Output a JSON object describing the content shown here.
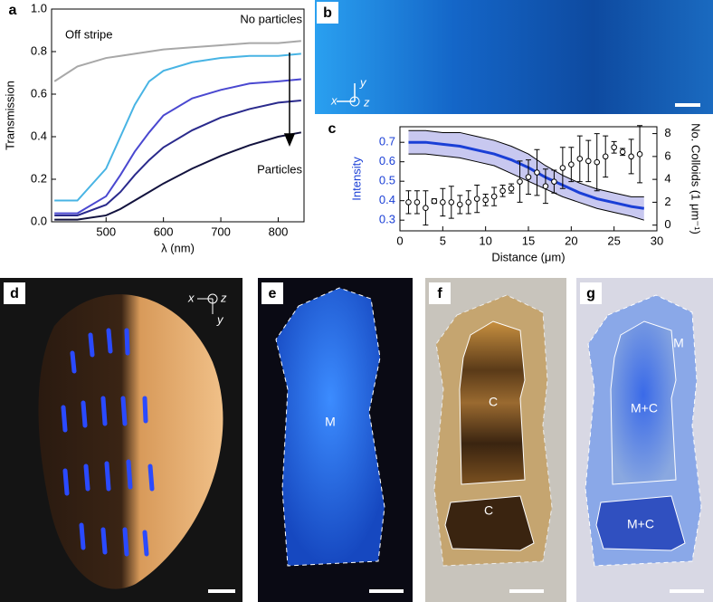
{
  "chart_data": [
    {
      "type": "line",
      "panel_label": "a",
      "xlabel": "λ (nm)",
      "ylabel": "Transmission",
      "x": [
        410,
        450,
        500,
        525,
        550,
        575,
        600,
        650,
        700,
        750,
        800,
        840
      ],
      "series": [
        {
          "name": "Off stripe",
          "color": "#a8a8a8",
          "values": [
            0.66,
            0.73,
            0.77,
            0.78,
            0.79,
            0.8,
            0.81,
            0.82,
            0.83,
            0.84,
            0.84,
            0.85
          ]
        },
        {
          "color": "#48b4e4",
          "values": [
            0.1,
            0.1,
            0.25,
            0.4,
            0.55,
            0.66,
            0.71,
            0.75,
            0.77,
            0.78,
            0.78,
            0.79
          ]
        },
        {
          "color": "#4a48d0",
          "values": [
            0.04,
            0.04,
            0.12,
            0.22,
            0.33,
            0.42,
            0.5,
            0.58,
            0.62,
            0.65,
            0.66,
            0.67
          ]
        },
        {
          "color": "#2a2a8c",
          "values": [
            0.03,
            0.03,
            0.08,
            0.14,
            0.22,
            0.29,
            0.35,
            0.43,
            0.49,
            0.53,
            0.56,
            0.57
          ]
        },
        {
          "color": "#12123e",
          "values": [
            0.01,
            0.01,
            0.03,
            0.06,
            0.1,
            0.14,
            0.18,
            0.25,
            0.31,
            0.36,
            0.4,
            0.42
          ]
        }
      ],
      "annotations": [
        "No particles",
        "Particles"
      ],
      "xlim": [
        405,
        845
      ],
      "ylim": [
        0,
        1
      ],
      "xticks": [
        500,
        600,
        700,
        800
      ],
      "yticks": [
        {
          "value": 0,
          "label": "0.0"
        },
        {
          "value": 0.2,
          "label": "0.2"
        },
        {
          "value": 0.4,
          "label": "0.4"
        },
        {
          "value": 0.6,
          "label": "0.6"
        },
        {
          "value": 0.8,
          "label": "0.8"
        },
        {
          "value": 1,
          "label": "1.0"
        }
      ]
    },
    {
      "type": "line",
      "panel_label": "c",
      "xlabel": "Distance (μm)",
      "ylabel": "Intensity",
      "y2label": "No. Colloids (1 μm⁻¹)",
      "series": [
        {
          "color": "#1a3fd6",
          "band_color": "#c8c8f0",
          "x": [
            1,
            3,
            5,
            7,
            9,
            11,
            13,
            15,
            17,
            19,
            21,
            23,
            25,
            27,
            28.5
          ],
          "values": [
            0.7,
            0.7,
            0.69,
            0.68,
            0.66,
            0.64,
            0.61,
            0.57,
            0.52,
            0.48,
            0.44,
            0.41,
            0.39,
            0.37,
            0.36
          ],
          "upper": [
            0.76,
            0.76,
            0.75,
            0.75,
            0.73,
            0.71,
            0.68,
            0.64,
            0.58,
            0.53,
            0.49,
            0.46,
            0.44,
            0.42,
            0.42
          ],
          "lower": [
            0.64,
            0.64,
            0.63,
            0.62,
            0.6,
            0.58,
            0.54,
            0.5,
            0.46,
            0.42,
            0.39,
            0.36,
            0.34,
            0.32,
            0.3
          ]
        },
        {
          "axis": "y2",
          "color": "#000000",
          "x": [
            1,
            2,
            3,
            4,
            5,
            6,
            7,
            8,
            9,
            10,
            11,
            12,
            13,
            14,
            15,
            16,
            17,
            18,
            19,
            20,
            21,
            22,
            23,
            24,
            25,
            26,
            27,
            28
          ],
          "values": [
            2.0,
            2.0,
            1.5,
            2.1,
            2.0,
            2.0,
            1.8,
            2.0,
            2.3,
            2.2,
            2.5,
            3.0,
            3.2,
            3.8,
            4.2,
            4.6,
            3.4,
            3.8,
            5.0,
            5.3,
            5.8,
            5.6,
            5.5,
            6.0,
            6.8,
            6.4,
            6.0,
            6.2
          ],
          "errors": [
            1.0,
            1.0,
            1.5,
            0.2,
            1.2,
            1.4,
            0.8,
            1.0,
            1.2,
            0.5,
            0.8,
            0.5,
            0.4,
            1.8,
            1.5,
            2.0,
            1.5,
            1.0,
            1.8,
            1.5,
            2.0,
            1.8,
            2.5,
            1.8,
            0.5,
            0.3,
            1.5,
            2.5
          ]
        }
      ],
      "xlim": [
        0,
        30
      ],
      "ylim": [
        0.245,
        0.78
      ],
      "y2lim": [
        -0.5,
        8.6
      ],
      "xticks": [
        0,
        5,
        10,
        15,
        20,
        25,
        30
      ],
      "yticks": [
        0.3,
        0.4,
        0.5,
        0.6,
        0.7
      ],
      "y2ticks": [
        0,
        2,
        4,
        6,
        8
      ]
    }
  ],
  "panels": {
    "b": {
      "label": "b",
      "axes": [
        "x",
        "y",
        "z"
      ]
    },
    "d": {
      "label": "d",
      "axes": [
        "x",
        "z",
        "y"
      ]
    },
    "e": {
      "label": "e",
      "region": "M"
    },
    "f": {
      "label": "f",
      "regions": [
        "C",
        "C"
      ]
    },
    "g": {
      "label": "g",
      "regions": [
        "M",
        "M+C",
        "M+C"
      ]
    }
  }
}
